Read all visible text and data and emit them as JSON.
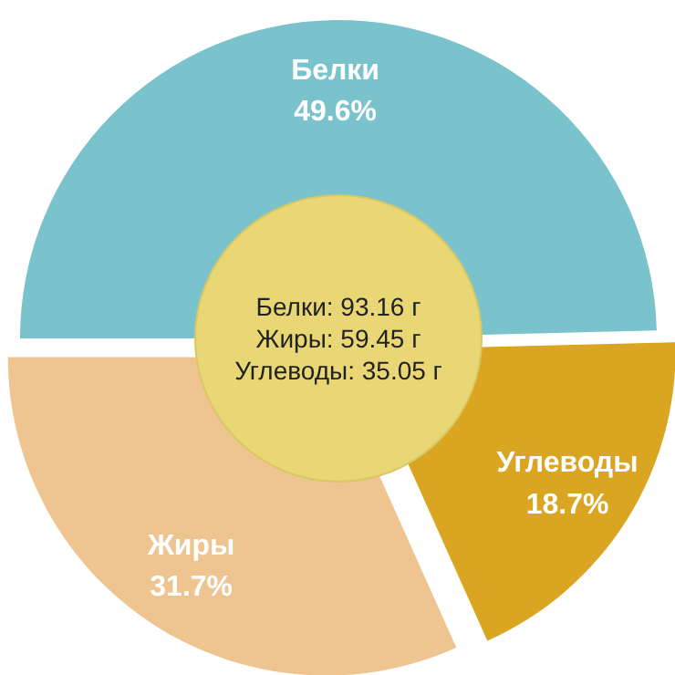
{
  "chart_data": {
    "type": "donut",
    "categories": [
      "Белки",
      "Углеводы",
      "Жиры"
    ],
    "values": [
      49.6,
      18.7,
      31.7
    ],
    "colors": [
      "#7ac3cc",
      "#daa520",
      "#eec591"
    ],
    "value_labels": [
      "49.6%",
      "18.7%",
      "31.7%"
    ],
    "annotations": [
      "Белки: 93.16 г",
      "Жиры: 59.45 г",
      "Углеводы: 35.05 г"
    ]
  }
}
